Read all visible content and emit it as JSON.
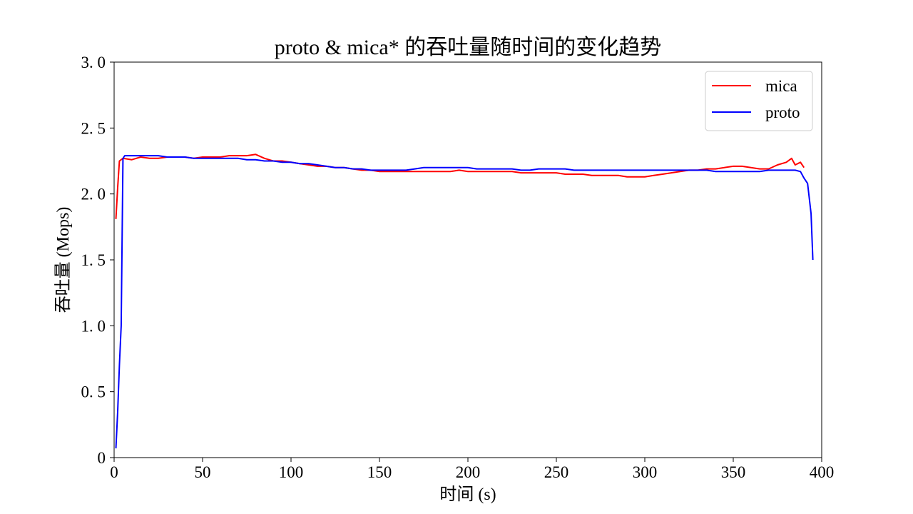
{
  "chart_data": {
    "type": "line",
    "title": "proto & mica* 的吞吐量随时间的变化趋势",
    "xlabel": "时间 (s)",
    "ylabel": "吞吐量 (Mops)",
    "xlim": [
      0,
      400
    ],
    "ylim": [
      0,
      3.0
    ],
    "xticks": [
      0,
      50,
      100,
      150,
      200,
      250,
      300,
      350,
      400
    ],
    "xtick_labels": [
      "0",
      "50",
      "100",
      "150",
      "200",
      "250",
      "300",
      "350",
      "400"
    ],
    "yticks": [
      0,
      0.5,
      1.0,
      1.5,
      2.0,
      2.5,
      3.0
    ],
    "ytick_labels": [
      "0",
      "0. 5",
      "1. 0",
      "1. 5",
      "2. 0",
      "2. 5",
      "3. 0"
    ],
    "grid": false,
    "legend_position": "top-right",
    "series": [
      {
        "name": "mica",
        "color": "#ff0000",
        "x": [
          1,
          2,
          3,
          5,
          10,
          15,
          20,
          25,
          30,
          35,
          40,
          45,
          50,
          55,
          60,
          65,
          70,
          75,
          80,
          85,
          90,
          95,
          100,
          105,
          110,
          115,
          120,
          125,
          130,
          135,
          140,
          145,
          150,
          155,
          160,
          165,
          170,
          175,
          180,
          185,
          190,
          195,
          200,
          205,
          210,
          215,
          220,
          225,
          230,
          235,
          240,
          245,
          250,
          255,
          260,
          265,
          270,
          275,
          280,
          285,
          290,
          295,
          300,
          305,
          310,
          315,
          320,
          325,
          330,
          335,
          340,
          345,
          350,
          355,
          360,
          365,
          370,
          375,
          380,
          383,
          385,
          388,
          390
        ],
        "values": [
          1.81,
          2.05,
          2.25,
          2.27,
          2.26,
          2.28,
          2.27,
          2.27,
          2.28,
          2.28,
          2.28,
          2.27,
          2.28,
          2.28,
          2.28,
          2.29,
          2.29,
          2.29,
          2.3,
          2.27,
          2.25,
          2.25,
          2.24,
          2.23,
          2.22,
          2.21,
          2.21,
          2.2,
          2.2,
          2.19,
          2.18,
          2.18,
          2.17,
          2.17,
          2.17,
          2.17,
          2.17,
          2.17,
          2.17,
          2.17,
          2.17,
          2.18,
          2.17,
          2.17,
          2.17,
          2.17,
          2.17,
          2.17,
          2.16,
          2.16,
          2.16,
          2.16,
          2.16,
          2.15,
          2.15,
          2.15,
          2.14,
          2.14,
          2.14,
          2.14,
          2.13,
          2.13,
          2.13,
          2.14,
          2.15,
          2.16,
          2.17,
          2.18,
          2.18,
          2.19,
          2.19,
          2.2,
          2.21,
          2.21,
          2.2,
          2.19,
          2.19,
          2.22,
          2.24,
          2.27,
          2.22,
          2.24,
          2.2
        ]
      },
      {
        "name": "proto",
        "color": "#0000ff",
        "x": [
          1,
          2,
          3,
          4,
          5,
          6,
          8,
          10,
          15,
          20,
          25,
          30,
          35,
          40,
          45,
          50,
          55,
          60,
          65,
          70,
          75,
          80,
          85,
          90,
          95,
          100,
          105,
          110,
          115,
          120,
          125,
          130,
          135,
          140,
          145,
          150,
          155,
          160,
          165,
          170,
          175,
          180,
          185,
          190,
          195,
          200,
          205,
          210,
          215,
          220,
          225,
          230,
          235,
          240,
          245,
          250,
          255,
          260,
          265,
          270,
          275,
          280,
          285,
          290,
          295,
          300,
          305,
          310,
          315,
          320,
          325,
          330,
          335,
          340,
          345,
          350,
          355,
          360,
          365,
          370,
          375,
          380,
          385,
          388,
          390,
          392,
          394,
          395
        ],
        "values": [
          0.07,
          0.35,
          0.7,
          1.0,
          2.27,
          2.29,
          2.29,
          2.29,
          2.29,
          2.29,
          2.29,
          2.28,
          2.28,
          2.28,
          2.27,
          2.27,
          2.27,
          2.27,
          2.27,
          2.27,
          2.26,
          2.26,
          2.25,
          2.25,
          2.24,
          2.24,
          2.23,
          2.23,
          2.22,
          2.21,
          2.2,
          2.2,
          2.19,
          2.19,
          2.18,
          2.18,
          2.18,
          2.18,
          2.18,
          2.19,
          2.2,
          2.2,
          2.2,
          2.2,
          2.2,
          2.2,
          2.19,
          2.19,
          2.19,
          2.19,
          2.19,
          2.18,
          2.18,
          2.19,
          2.19,
          2.19,
          2.19,
          2.18,
          2.18,
          2.18,
          2.18,
          2.18,
          2.18,
          2.18,
          2.18,
          2.18,
          2.18,
          2.18,
          2.18,
          2.18,
          2.18,
          2.18,
          2.18,
          2.17,
          2.17,
          2.17,
          2.17,
          2.17,
          2.17,
          2.18,
          2.18,
          2.18,
          2.18,
          2.17,
          2.12,
          2.08,
          1.85,
          1.5
        ]
      }
    ]
  }
}
